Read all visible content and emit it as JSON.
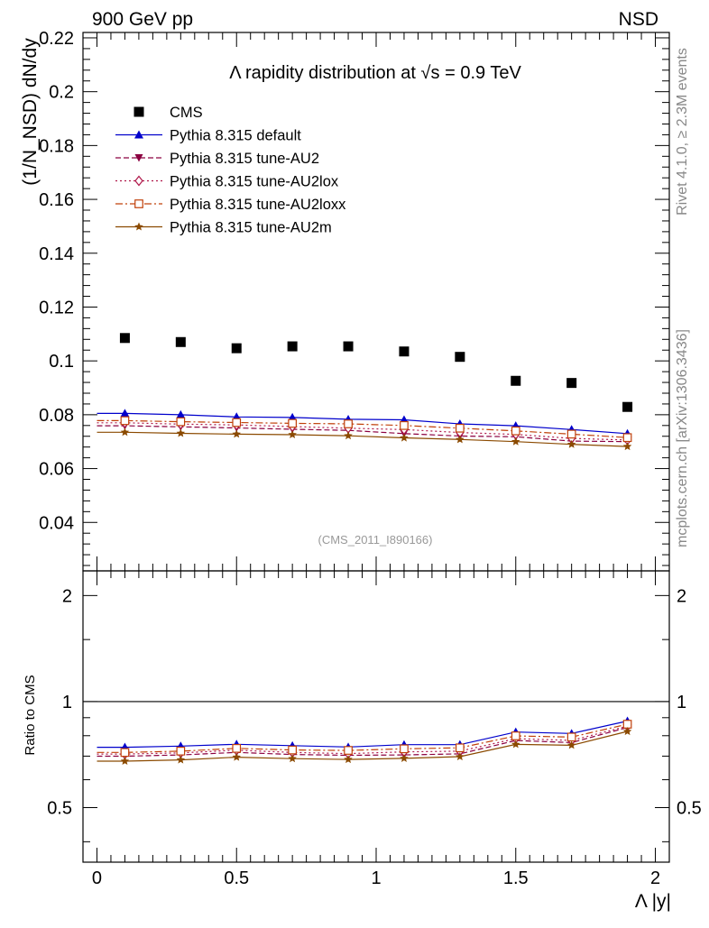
{
  "header": {
    "left": "900 GeV pp",
    "right": "NSD"
  },
  "side_labels": {
    "rivet": "Rivet 4.1.0, ≥ 2.3M events",
    "mcplots": "mcplots.cern.ch [arXiv:1306.3436]"
  },
  "chart_data": {
    "type": "scatter",
    "title_prefix": "Λ rapidity distribution at ",
    "title_sqrt": "√s",
    "title_suffix": " = 0.9 TeV",
    "analysis_id": "(CMS_2011_I890166)",
    "ylabel_main": "(1/N_NSD) dN/dy",
    "ylabel_ratio": "Ratio to CMS",
    "xlabel": "Λ |y|",
    "xlim": [
      -0.05,
      2.05
    ],
    "ylim_main": [
      0.022,
      0.222
    ],
    "ylim_ratio": [
      0.35,
      2.35
    ],
    "ratio_scale": "log",
    "x_ticks": [
      "0",
      "0.5",
      "1",
      "1.5",
      "2"
    ],
    "x_tick_values": [
      0,
      0.5,
      1,
      1.5,
      2
    ],
    "y_ticks_main": [
      "0.04",
      "0.06",
      "0.08",
      "0.1",
      "0.12",
      "0.14",
      "0.16",
      "0.18",
      "0.2",
      "0.22"
    ],
    "y_tick_values_main": [
      0.04,
      0.06,
      0.08,
      0.1,
      0.12,
      0.14,
      0.16,
      0.18,
      0.2,
      0.22
    ],
    "y_ticks_ratio": [
      "0.5",
      "1",
      "2"
    ],
    "y_tick_values_ratio": [
      0.5,
      1,
      2
    ],
    "x": [
      0.1,
      0.3,
      0.5,
      0.7,
      0.9,
      1.1,
      1.3,
      1.5,
      1.7,
      1.9
    ],
    "legend_position": "top-left",
    "series": [
      {
        "name": "CMS",
        "marker": "square",
        "color": "#000000",
        "dash": "none",
        "values": [
          0.1085,
          0.107,
          0.1047,
          0.1054,
          0.1054,
          0.1035,
          0.1015,
          0.0926,
          0.0918,
          0.0829
        ]
      },
      {
        "name": "Pythia 8.315 default",
        "marker": "triangle-up",
        "color": "#0000cc",
        "dash": "solid",
        "values": [
          0.0805,
          0.08,
          0.0792,
          0.079,
          0.0783,
          0.0781,
          0.0766,
          0.0759,
          0.0745,
          0.073
        ]
      },
      {
        "name": "Pythia 8.315 tune-AU2",
        "marker": "triangle-down",
        "color": "#8b0040",
        "dash": "dashed",
        "values": [
          0.0759,
          0.0755,
          0.0751,
          0.0746,
          0.0742,
          0.073,
          0.0721,
          0.0718,
          0.0702,
          0.07
        ]
      },
      {
        "name": "Pythia 8.315 tune-AU2lox",
        "marker": "diamond-open",
        "color": "#b0184a",
        "dash": "dotted",
        "values": [
          0.077,
          0.0765,
          0.0762,
          0.0756,
          0.075,
          0.0745,
          0.0734,
          0.0727,
          0.0712,
          0.0706
        ]
      },
      {
        "name": "Pythia 8.315 tune-AU2loxx",
        "marker": "square-open",
        "color": "#c0400a",
        "dash": "dashdot",
        "values": [
          0.0778,
          0.0774,
          0.0771,
          0.0768,
          0.0766,
          0.076,
          0.075,
          0.074,
          0.0728,
          0.0715
        ]
      },
      {
        "name": "Pythia 8.315 tune-AU2m",
        "marker": "star",
        "color": "#8b4a00",
        "dash": "solid",
        "values": [
          0.0735,
          0.0731,
          0.0728,
          0.0726,
          0.0722,
          0.0714,
          0.0708,
          0.07,
          0.069,
          0.0682
        ]
      }
    ]
  }
}
